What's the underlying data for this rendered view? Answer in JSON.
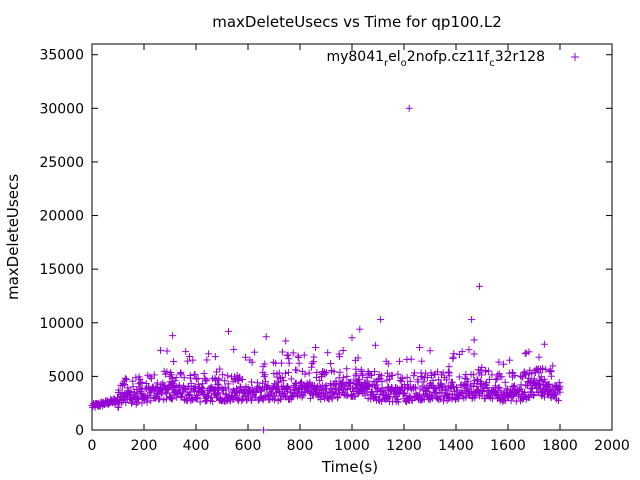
{
  "chart_data": {
    "type": "scatter",
    "title": "maxDeleteUsecs vs Time for qp100.L2",
    "xlabel": "Time(s)",
    "ylabel": "maxDeleteUsecs",
    "xlim": [
      0,
      2000
    ],
    "ylim": [
      0,
      36000
    ],
    "xticks": [
      0,
      200,
      400,
      600,
      800,
      1000,
      1200,
      1400,
      1600,
      1800,
      2000
    ],
    "yticks": [
      0,
      5000,
      10000,
      15000,
      20000,
      25000,
      30000,
      35000
    ],
    "grid": false,
    "legend_position": "top-right",
    "marker": "plus",
    "series": [
      {
        "name": "my8041_rel_o2nofp.cz11f_c32r128",
        "color": "#9400d3",
        "points_description": "dense band rising from ~2200 at t=0 to ~3500 by t=300, then fluctuating around 3000-4000 through t=1800",
        "outliers": [
          [
            310,
            8800
          ],
          [
            525,
            9200
          ],
          [
            545,
            7500
          ],
          [
            660,
            0
          ],
          [
            670,
            8700
          ],
          [
            745,
            8300
          ],
          [
            860,
            7700
          ],
          [
            1000,
            8600
          ],
          [
            1030,
            9400
          ],
          [
            1090,
            7900
          ],
          [
            1110,
            10300
          ],
          [
            1220,
            30000
          ],
          [
            1260,
            7700
          ],
          [
            1460,
            10300
          ],
          [
            1470,
            8400
          ],
          [
            1490,
            13400
          ],
          [
            1740,
            8000
          ]
        ],
        "band": [
          [
            0,
            2200
          ],
          [
            50,
            2500
          ],
          [
            100,
            2800
          ],
          [
            150,
            3000
          ],
          [
            200,
            3200
          ],
          [
            250,
            3400
          ],
          [
            300,
            3600
          ],
          [
            350,
            3500
          ],
          [
            400,
            3300
          ],
          [
            450,
            3300
          ],
          [
            500,
            3400
          ],
          [
            550,
            3300
          ],
          [
            600,
            3400
          ],
          [
            650,
            3500
          ],
          [
            700,
            3400
          ],
          [
            750,
            3500
          ],
          [
            800,
            3700
          ],
          [
            850,
            3600
          ],
          [
            900,
            3500
          ],
          [
            950,
            3700
          ],
          [
            1000,
            3800
          ],
          [
            1050,
            3700
          ],
          [
            1100,
            3400
          ],
          [
            1150,
            3300
          ],
          [
            1200,
            3300
          ],
          [
            1250,
            3400
          ],
          [
            1300,
            3500
          ],
          [
            1350,
            3400
          ],
          [
            1400,
            3500
          ],
          [
            1450,
            3600
          ],
          [
            1500,
            3700
          ],
          [
            1550,
            3400
          ],
          [
            1600,
            3300
          ],
          [
            1650,
            3400
          ],
          [
            1700,
            3800
          ],
          [
            1750,
            3700
          ],
          [
            1800,
            3400
          ]
        ]
      }
    ]
  },
  "legend": {
    "prefix": "my8041",
    "sub1": "r",
    "mid1": "el",
    "sub2": "o",
    "mid2": "2nofp.cz11f",
    "sub3": "c",
    "suffix": "32r128"
  }
}
